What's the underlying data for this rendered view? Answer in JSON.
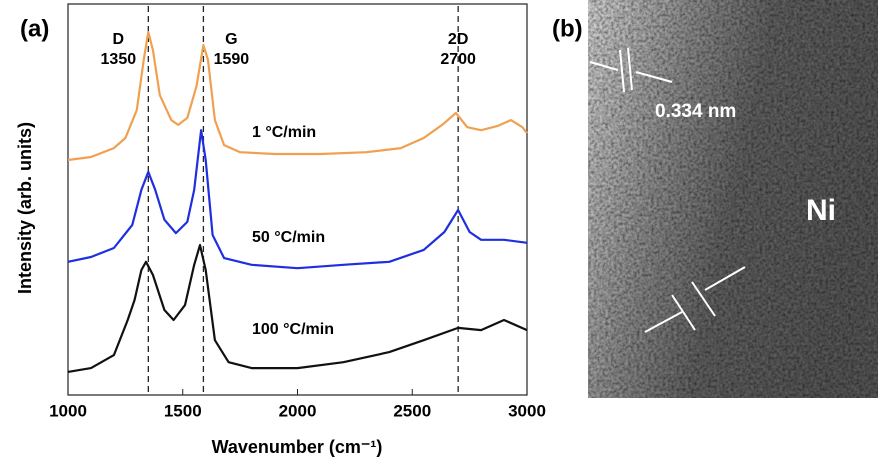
{
  "chart_data": {
    "type": "line",
    "panel_label": "(a)",
    "x_label": "Wavenumber (cm⁻¹)",
    "y_label": "Intensity (arb. units)",
    "xlim": [
      1000,
      3000
    ],
    "xticks": [
      1000,
      1500,
      2000,
      2500,
      3000
    ],
    "ylim": [
      0,
      100
    ],
    "peaks": [
      {
        "name": "D",
        "x": 1350
      },
      {
        "name": "G",
        "x": 1590
      },
      {
        "name": "2D",
        "x": 2700
      }
    ],
    "series": [
      {
        "name": "1 °C/min",
        "color": "#f0a050",
        "x": [
          1000,
          1100,
          1200,
          1250,
          1300,
          1330,
          1350,
          1370,
          1400,
          1450,
          1480,
          1520,
          1560,
          1590,
          1610,
          1640,
          1680,
          1750,
          1900,
          2100,
          2300,
          2450,
          2550,
          2630,
          2690,
          2740,
          2800,
          2870,
          2930,
          2980,
          3000
        ],
        "values": [
          63.0,
          63.8,
          66.2,
          68.9,
          76.4,
          89.8,
          97.3,
          92.5,
          80.4,
          73.7,
          72.4,
          74.3,
          82.8,
          93.8,
          89.8,
          73.7,
          67.0,
          65.1,
          64.6,
          64.6,
          65.1,
          66.2,
          68.9,
          72.4,
          75.6,
          71.8,
          71.0,
          72.1,
          73.7,
          71.8,
          70.2
        ]
      },
      {
        "name": "50 °C/min",
        "color": "#1f2fe0",
        "x": [
          1000,
          1100,
          1200,
          1280,
          1320,
          1350,
          1380,
          1420,
          1470,
          1520,
          1550,
          1580,
          1600,
          1630,
          1680,
          1800,
          2000,
          2200,
          2400,
          2550,
          2640,
          2700,
          2750,
          2800,
          2900,
          3000
        ],
        "values": [
          35.7,
          37.0,
          39.4,
          45.6,
          55.0,
          59.8,
          55.0,
          47.0,
          43.4,
          46.4,
          55.0,
          71.0,
          63.0,
          42.9,
          36.7,
          34.9,
          34.0,
          34.9,
          35.7,
          38.9,
          43.7,
          49.6,
          43.7,
          41.6,
          41.6,
          40.8
        ]
      },
      {
        "name": "100 °C/min",
        "color": "#111111",
        "x": [
          1000,
          1100,
          1200,
          1260,
          1290,
          1320,
          1340,
          1370,
          1420,
          1460,
          1510,
          1550,
          1575,
          1600,
          1640,
          1700,
          1800,
          2000,
          2200,
          2400,
          2550,
          2700,
          2800,
          2900,
          3000
        ],
        "values": [
          6.2,
          7.2,
          10.7,
          20.1,
          25.5,
          33.5,
          35.7,
          32.2,
          22.8,
          20.1,
          24.1,
          34.9,
          40.2,
          33.5,
          14.7,
          8.8,
          7.2,
          7.2,
          8.8,
          11.5,
          14.7,
          18.0,
          17.4,
          20.1,
          17.4
        ]
      }
    ]
  },
  "image_b": {
    "panel_label": "(b)",
    "spacing": "0.334 nm",
    "region": "Ni"
  }
}
